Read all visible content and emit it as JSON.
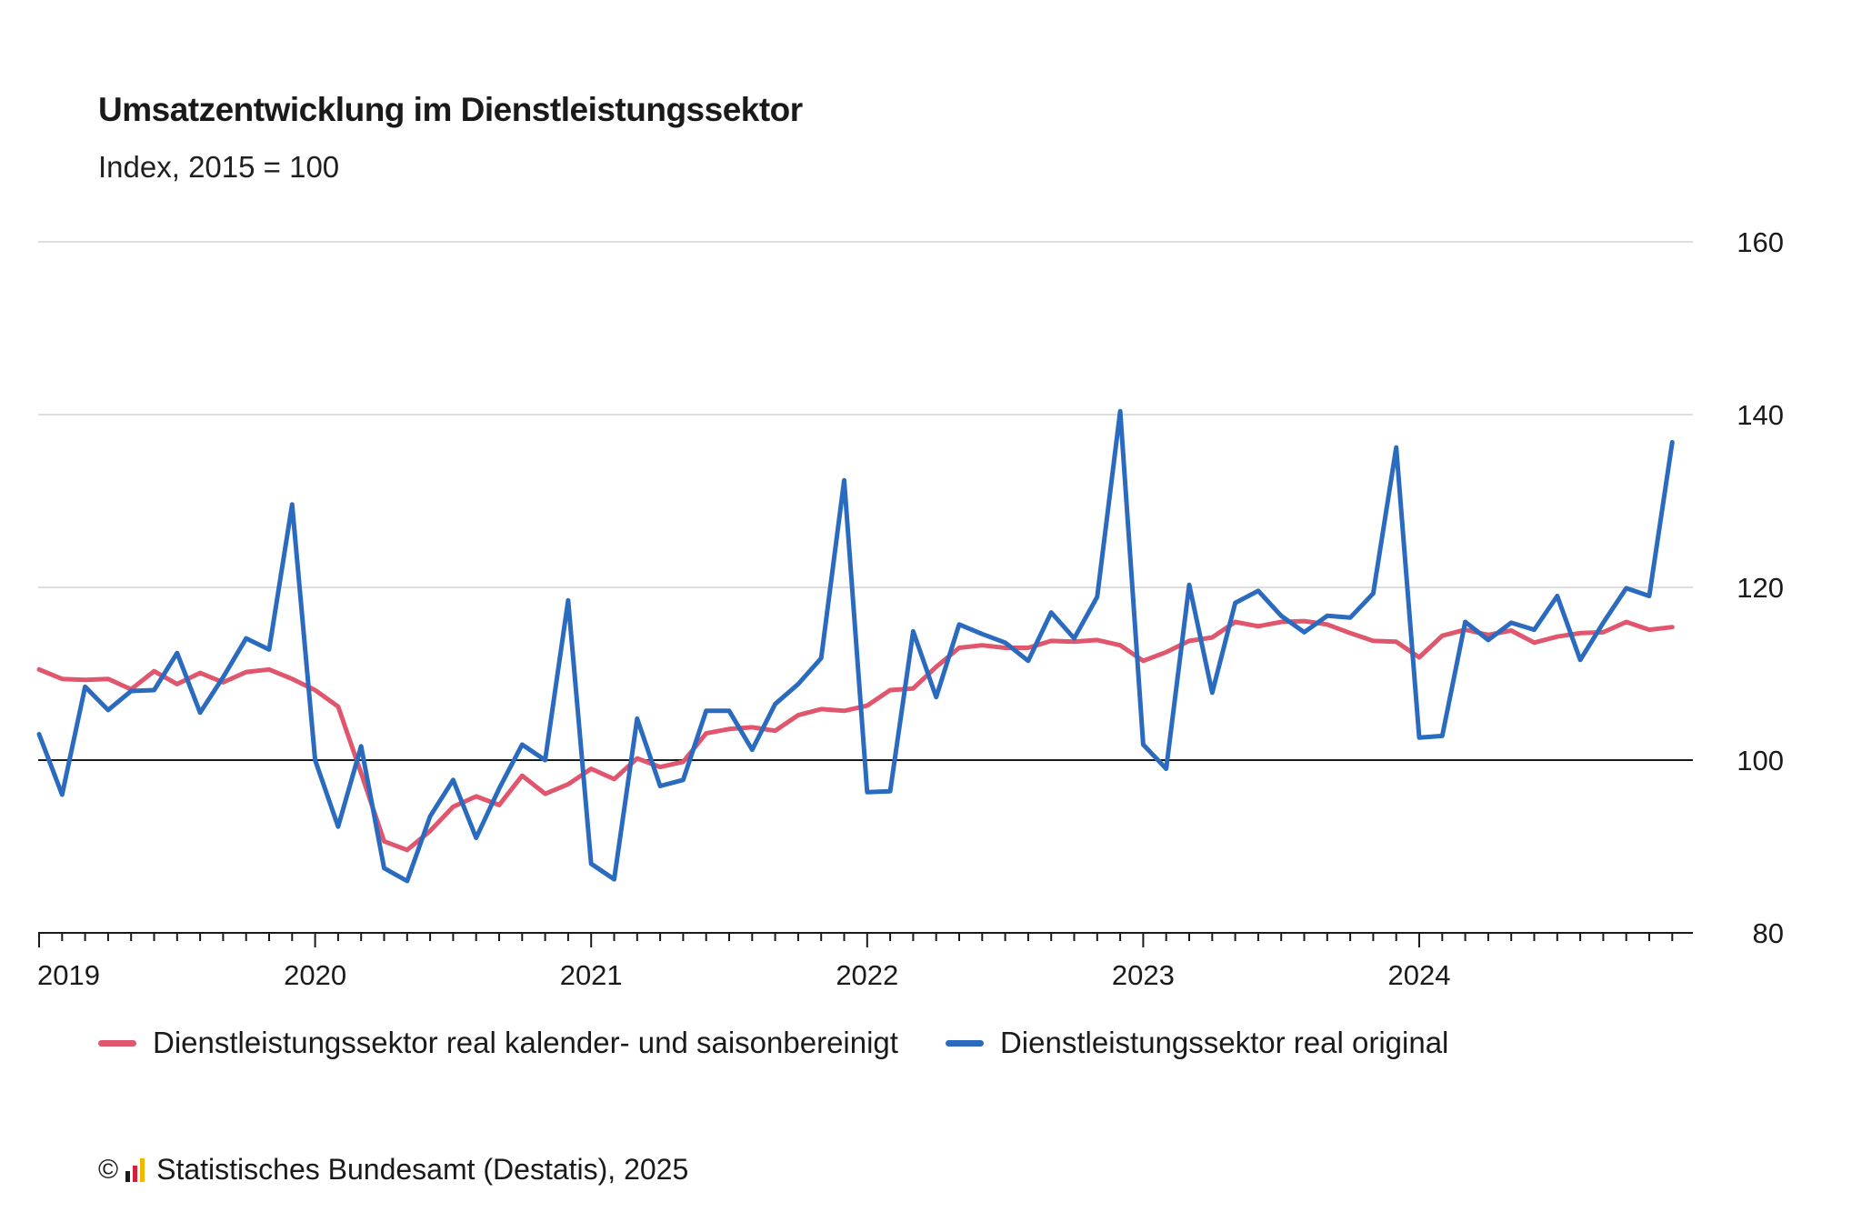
{
  "header": {
    "title": "Umsatzentwicklung im Dienstleistungssektor",
    "subtitle": "Index, 2015 = 100"
  },
  "footer": {
    "copyright_symbol": "©",
    "source": "Statistisches Bundesamt (Destatis), 2025",
    "logo_icon": "destatis-logo-icon"
  },
  "chart_data": {
    "type": "line",
    "title": "Umsatzentwicklung im Dienstleistungssektor",
    "subtitle": "Index, 2015 = 100",
    "xlabel": "",
    "ylabel": "",
    "x_start": "2019-01",
    "x_end": "2024-12",
    "x_ticks": [
      "2019",
      "2020",
      "2021",
      "2022",
      "2023",
      "2024"
    ],
    "ylim": [
      80,
      160
    ],
    "y_ticks": [
      80,
      100,
      120,
      140,
      160
    ],
    "reference_line": 100,
    "grid": true,
    "legend_position": "bottom",
    "series": [
      {
        "name": "Dienstleistungssektor real kalender- und saisonbereinigt",
        "color": "#e0566c",
        "values": [
          110.5,
          109.4,
          109.3,
          109.4,
          108.2,
          110.3,
          108.8,
          110.1,
          109.0,
          110.2,
          110.5,
          109.4,
          108.1,
          106.2,
          98.5,
          90.6,
          89.6,
          91.8,
          94.6,
          95.8,
          94.8,
          98.2,
          96.1,
          97.2,
          99.0,
          97.8,
          100.2,
          99.2,
          99.8,
          103.1,
          103.6,
          103.8,
          103.4,
          105.2,
          105.9,
          105.7,
          106.3,
          108.1,
          108.3,
          110.8,
          113.0,
          113.3,
          113.0,
          113.0,
          113.8,
          113.7,
          113.9,
          113.3,
          111.5,
          112.5,
          113.8,
          114.2,
          116.0,
          115.5,
          116.0,
          116.1,
          115.7,
          114.7,
          113.8,
          113.7,
          111.9,
          114.4,
          115.1,
          114.5,
          115.0,
          113.6,
          114.3,
          114.7,
          114.8,
          116.0,
          115.1,
          115.4
        ]
      },
      {
        "name": "Dienstleistungssektor real original",
        "color": "#2a6bbf",
        "values": [
          103.0,
          96.0,
          108.5,
          105.8,
          108.0,
          108.1,
          112.4,
          105.5,
          109.6,
          114.1,
          112.8,
          129.6,
          100.0,
          92.3,
          101.6,
          87.5,
          86.0,
          93.5,
          97.7,
          91.0,
          96.7,
          101.8,
          100.0,
          118.5,
          88.0,
          86.2,
          104.8,
          97.0,
          97.7,
          105.7,
          105.7,
          101.2,
          106.5,
          108.8,
          111.8,
          132.4,
          96.3,
          96.4,
          114.9,
          107.3,
          115.7,
          114.6,
          113.6,
          111.5,
          117.1,
          114.1,
          118.9,
          140.4,
          101.8,
          99.0,
          120.3,
          107.8,
          118.2,
          119.6,
          116.7,
          114.8,
          116.7,
          116.5,
          119.3,
          136.2,
          102.6,
          102.8,
          116.0,
          113.9,
          115.9,
          115.1,
          119.0,
          111.6,
          115.9,
          119.9,
          119.0,
          136.8
        ]
      }
    ]
  }
}
